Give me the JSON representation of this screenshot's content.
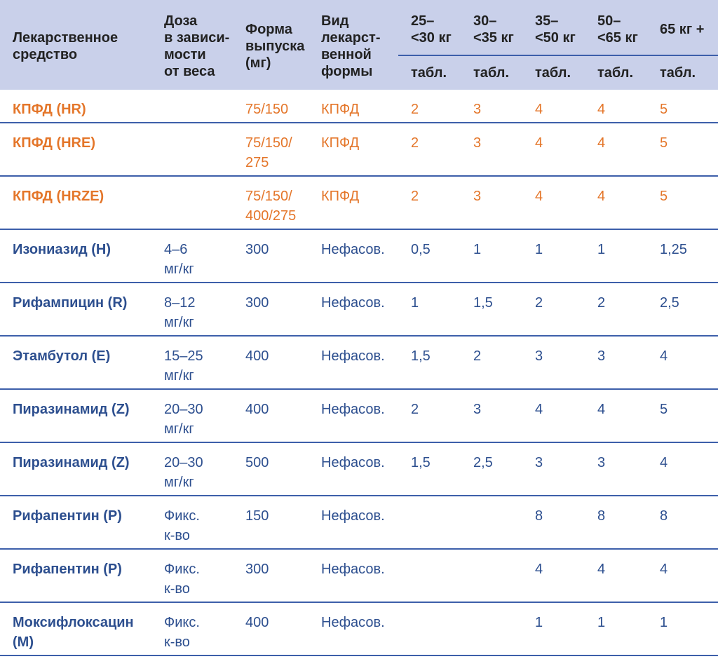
{
  "header": {
    "drug": "Лекарственное\nсредство",
    "dose": "Доза\nв зависи-\nмости\nот веса",
    "form": "Форма\nвыпуска\n(мг)",
    "kind": "Вид\nлекарст-\nвенной\nформы",
    "weights": [
      "25–\n<30 кг",
      "30–\n<35 кг",
      "35–\n<50 кг",
      "50–\n<65 кг",
      "65 кг +"
    ],
    "unit": "табл."
  },
  "colors": {
    "header_bg": "#c9d0ea",
    "fdc_text": "#e4762a",
    "text": "#2d4f8f",
    "rule": "#3d5faa"
  },
  "rows": [
    {
      "name": "КПФД (HR)",
      "dose": "",
      "form": "75/150",
      "kind": "КПФД",
      "tabs": [
        "2",
        "3",
        "4",
        "4",
        "5"
      ]
    },
    {
      "name": "КПФД (HRE)",
      "dose": "",
      "form": "75/150/\n275",
      "kind": "КПФД",
      "tabs": [
        "2",
        "3",
        "4",
        "4",
        "5"
      ]
    },
    {
      "name": "КПФД (HRZE)",
      "dose": "",
      "form": "75/150/\n400/275",
      "kind": "КПФД",
      "tabs": [
        "2",
        "3",
        "4",
        "4",
        "5"
      ]
    },
    {
      "name": "Изониазид (H)",
      "dose": "4–6\nмг/кг",
      "form": "300",
      "kind": "Нефасов.",
      "tabs": [
        "0,5",
        "1",
        "1",
        "1",
        "1,25"
      ]
    },
    {
      "name": "Рифампицин (R)",
      "dose": "8–12\nмг/кг",
      "form": "300",
      "kind": "Нефасов.",
      "tabs": [
        "1",
        "1,5",
        "2",
        "2",
        "2,5"
      ]
    },
    {
      "name": "Этамбутол (E)",
      "dose": "15–25\nмг/кг",
      "form": "400",
      "kind": "Нефасов.",
      "tabs": [
        "1,5",
        "2",
        "3",
        "3",
        "4"
      ]
    },
    {
      "name": "Пиразинамид (Z)",
      "dose": "20–30\nмг/кг",
      "form": "400",
      "kind": "Нефасов.",
      "tabs": [
        "2",
        "3",
        "4",
        "4",
        "5"
      ]
    },
    {
      "name": "Пиразинамид (Z)",
      "dose": "20–30\nмг/кг",
      "form": "500",
      "kind": "Нефасов.",
      "tabs": [
        "1,5",
        "2,5",
        "3",
        "3",
        "4"
      ]
    },
    {
      "name": "Рифапентин (P)",
      "dose": "Фикс.\nк-во",
      "form": "150",
      "kind": "Нефасов.",
      "tabs": [
        "",
        "",
        "8",
        "8",
        "8"
      ]
    },
    {
      "name": "Рифапентин (P)",
      "dose": "Фикс.\nк-во",
      "form": "300",
      "kind": "Нефасов.",
      "tabs": [
        "",
        "",
        "4",
        "4",
        "4"
      ]
    },
    {
      "name": "Моксифлоксацин\n(M)",
      "dose": "Фикс.\nк-во",
      "form": "400",
      "kind": "Нефасов.",
      "tabs": [
        "",
        "",
        "1",
        "1",
        "1"
      ]
    }
  ]
}
